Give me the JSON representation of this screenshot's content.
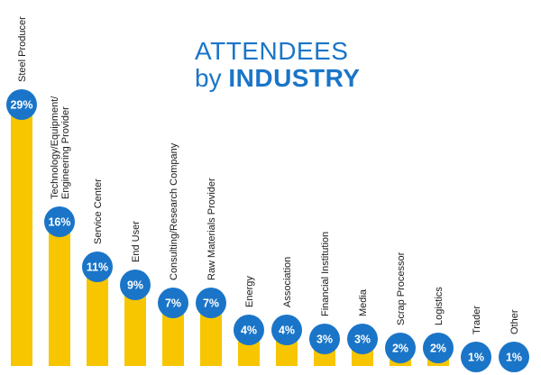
{
  "title": {
    "line1": "ATTENDEES",
    "line2_prefix": "by",
    "line2_emphasis": "INDUSTRY"
  },
  "colors": {
    "bar": "#F7C600",
    "badge": "#1A75C8",
    "badge_text": "#FFFFFF",
    "label": "#1A1A1A",
    "title": "#1A75C8"
  },
  "chart_data": {
    "type": "bar",
    "title": "ATTENDEES by INDUSTRY",
    "categories": [
      "Steel Producer",
      "Technology/Equipment/\nEngineering Provider",
      "Service Center",
      "End User",
      "Consulting/Research Company",
      "Raw Materials Provider",
      "Energy",
      "Association",
      "Financial Institution",
      "Media",
      "Scrap Processor",
      "Logistics",
      "Trader",
      "Other"
    ],
    "values": [
      29,
      16,
      11,
      9,
      7,
      7,
      4,
      4,
      3,
      3,
      2,
      2,
      1,
      1
    ],
    "value_labels": [
      "29%",
      "16%",
      "11%",
      "9%",
      "7%",
      "7%",
      "4%",
      "4%",
      "3%",
      "3%",
      "2%",
      "2%",
      "1%",
      "1%"
    ],
    "xlabel": "",
    "ylabel": "",
    "unit": "%",
    "grid": false,
    "legend": "none"
  }
}
